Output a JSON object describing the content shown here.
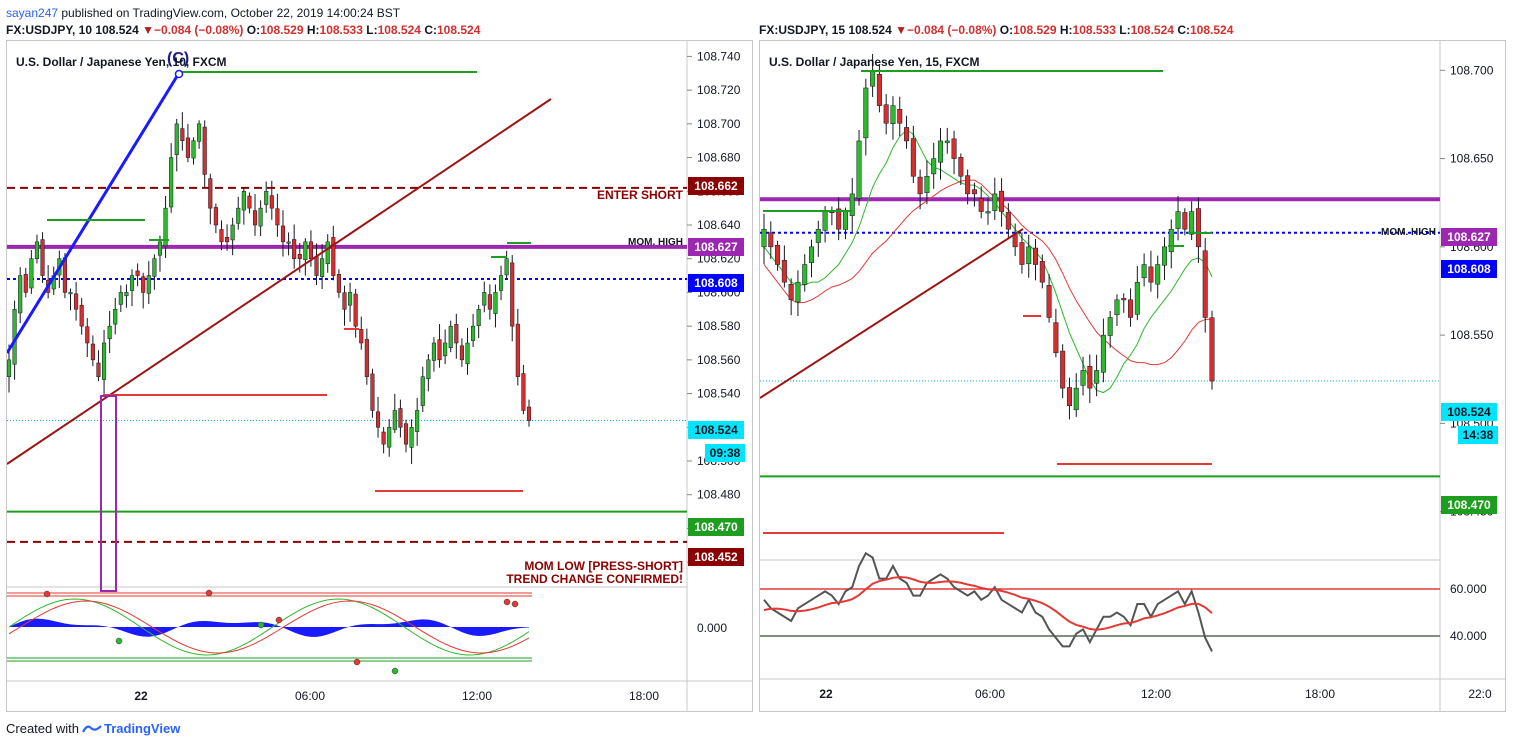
{
  "header": {
    "user": "sayan247",
    "published": " published on TradingView.com, October 22, 2019 14:00:24 BST"
  },
  "left": {
    "quote": {
      "symbol": "FX:USDJPY, 10",
      "last": "108.524",
      "change": "−0.084 (−0.08%)",
      "o_label": "O:",
      "o": "108.529",
      "h_label": "H:",
      "h": "108.533",
      "l_label": "L:",
      "l": "108.524",
      "c_label": "C:",
      "c": "108.524"
    },
    "title": "U.S. Dollar / Japanese Yen, 10, FXCM",
    "wave_label": "(C)",
    "axis": {
      "ticks": [
        "108.740",
        "108.720",
        "108.700",
        "108.680",
        "108.660",
        "108.640",
        "108.620",
        "108.600",
        "108.580",
        "108.560",
        "108.540",
        "108.520",
        "108.500",
        "108.480",
        "108.460",
        "108.440"
      ],
      "osc_tick": "0.000",
      "time_ticks": [
        "22",
        "06:00",
        "12:00",
        "18:00"
      ]
    },
    "price_labels": {
      "enter_short": "108.662",
      "mom_high": "108.627",
      "blue_line": "108.608",
      "current": "108.524",
      "countdown": "09:38",
      "support": "108.470",
      "mom_low": "108.452"
    },
    "notes": {
      "enter_short": "ENTER SHORT",
      "mom_high": "MOM. HIGH",
      "mom_low_1": "MOM LOW [PRESS-SHORT]",
      "mom_low_2": "TREND CHANGE CONFIRMED!"
    }
  },
  "right": {
    "quote": {
      "symbol": "FX:USDJPY, 15",
      "last": "108.524",
      "change": "−0.084 (−0.08%)",
      "o_label": "O:",
      "o": "108.529",
      "h_label": "H:",
      "h": "108.533",
      "l_label": "L:",
      "l": "108.524",
      "c_label": "C:",
      "c": "108.524"
    },
    "title": "U.S. Dollar / Japanese Yen, 15, FXCM",
    "axis": {
      "ticks": [
        "108.700",
        "108.650",
        "108.600",
        "108.550",
        "108.500",
        "108.450"
      ],
      "osc_ticks": [
        "60.000",
        "40.000"
      ],
      "time_ticks": [
        "22",
        "06:00",
        "12:00",
        "18:00",
        "22:0"
      ]
    },
    "price_labels": {
      "mom_high": "108.627",
      "blue_line": "108.608",
      "current": "108.524",
      "countdown": "14:38",
      "support": "108.470"
    },
    "notes": {
      "mom_high": "MOM. HIGH"
    }
  },
  "footer": {
    "created_with": "Created with",
    "brand": "TradingView"
  },
  "colors": {
    "up": "#2eb82e",
    "down": "#d32f2f",
    "blue_line": "#0000ff",
    "purple": "#9c27b0",
    "dark_red": "#8b0000",
    "green_line": "#1e9e1e",
    "cyan": "#00e5ff"
  },
  "chart_data": [
    {
      "type": "candlestick",
      "symbol": "FX:USDJPY",
      "interval_min": 10,
      "ylim": [
        108.43,
        108.745
      ],
      "x_ticks": [
        "22",
        "06:00",
        "12:00",
        "18:00"
      ],
      "closes": [
        108.56,
        108.59,
        108.61,
        108.6,
        108.62,
        108.63,
        108.61,
        108.6,
        108.61,
        108.62,
        108.6,
        108.6,
        108.59,
        108.58,
        108.57,
        108.56,
        108.55,
        108.57,
        108.58,
        108.59,
        108.6,
        108.6,
        108.61,
        108.61,
        108.6,
        108.61,
        108.62,
        108.63,
        108.65,
        108.68,
        108.7,
        108.69,
        108.68,
        108.69,
        108.7,
        108.67,
        108.65,
        108.64,
        108.63,
        108.63,
        108.64,
        108.65,
        108.66,
        108.65,
        108.64,
        108.65,
        108.66,
        108.65,
        108.64,
        108.63,
        108.63,
        108.62,
        108.62,
        108.63,
        108.62,
        108.61,
        108.62,
        108.63,
        108.61,
        108.6,
        108.59,
        108.6,
        108.58,
        108.57,
        108.55,
        108.53,
        108.52,
        108.51,
        108.52,
        108.53,
        108.52,
        108.51,
        108.52,
        108.53,
        108.55,
        108.56,
        108.57,
        108.56,
        108.57,
        108.58,
        108.57,
        108.56,
        108.57,
        108.58,
        108.59,
        108.6,
        108.59,
        108.6,
        108.61,
        108.62,
        108.58,
        108.55,
        108.53,
        108.524
      ],
      "horizontal_levels": {
        "enter_short": 108.662,
        "mom_high": 108.627,
        "blue_line": 108.608,
        "current": 108.524,
        "support": 108.47,
        "mom_low": 108.452
      },
      "time_range_hours": [
        -3.5,
        21
      ]
    },
    {
      "type": "candlestick",
      "symbol": "FX:USDJPY",
      "interval_min": 15,
      "ylim": [
        108.43,
        108.72
      ],
      "x_ticks": [
        "22",
        "06:00",
        "12:00",
        "18:00",
        "22:0"
      ],
      "closes": [
        108.61,
        108.6,
        108.59,
        108.58,
        108.57,
        108.58,
        108.59,
        108.6,
        108.61,
        108.62,
        108.62,
        108.61,
        108.62,
        108.63,
        108.66,
        108.69,
        108.7,
        108.68,
        108.67,
        108.68,
        108.67,
        108.66,
        108.64,
        108.63,
        108.64,
        108.65,
        108.66,
        108.66,
        108.65,
        108.64,
        108.63,
        108.63,
        108.62,
        108.62,
        108.63,
        108.62,
        108.61,
        108.6,
        108.59,
        108.6,
        108.59,
        108.58,
        108.56,
        108.54,
        108.52,
        108.51,
        108.52,
        108.53,
        108.52,
        108.53,
        108.55,
        108.56,
        108.57,
        108.57,
        108.56,
        108.58,
        108.59,
        108.58,
        108.59,
        108.6,
        108.61,
        108.62,
        108.61,
        108.62,
        108.6,
        108.56,
        108.524
      ],
      "oscillator": {
        "ylim": [
          30,
          70
        ],
        "levels": [
          60,
          40
        ]
      },
      "horizontal_levels": {
        "mom_high": 108.627,
        "blue_line": 108.608,
        "current": 108.524,
        "support": 108.47
      },
      "time_range_hours": [
        -1.5,
        22.5
      ]
    }
  ]
}
